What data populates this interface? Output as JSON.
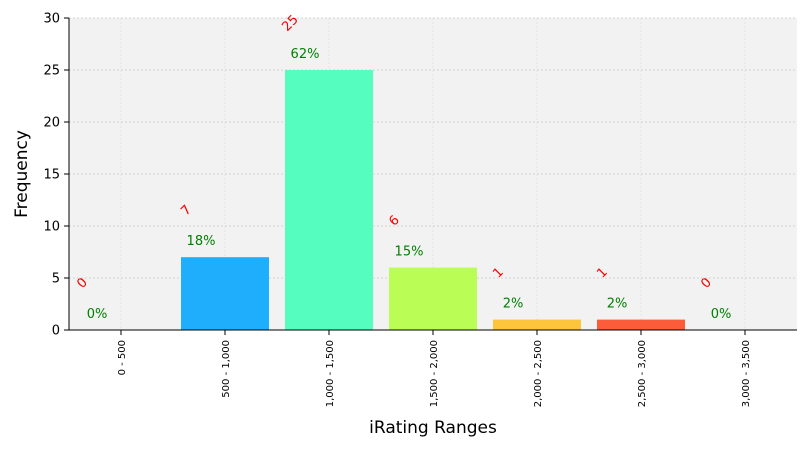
{
  "chart_data": {
    "type": "bar",
    "xlabel": "iRating Ranges",
    "ylabel": "Frequency",
    "ylim": [
      0,
      30
    ],
    "yticks": [
      0,
      5,
      10,
      15,
      20,
      25,
      30
    ],
    "grid": true,
    "categories": [
      "0 - 500",
      "500 - 1,000",
      "1,000 - 1,500",
      "1,500 - 2,000",
      "2,000 - 2,500",
      "2,500 - 3,000",
      "3,000 - 3,500"
    ],
    "values": [
      0,
      7,
      25,
      6,
      1,
      1,
      0
    ],
    "count_labels": [
      "0",
      "7",
      "25",
      "6",
      "1",
      "1",
      "0"
    ],
    "percent_labels": [
      "0%",
      "18%",
      "62%",
      "15%",
      "2%",
      "2%",
      "0%"
    ],
    "colors": [
      "#ff0000",
      "#1eaefc",
      "#55fdbf",
      "#bafd55",
      "#fdc53b",
      "#fd5c3b",
      "#ff0000"
    ],
    "count_label_color": "#ff0000",
    "percent_label_color": "#008000",
    "plot_background": "#f2f2f2"
  }
}
